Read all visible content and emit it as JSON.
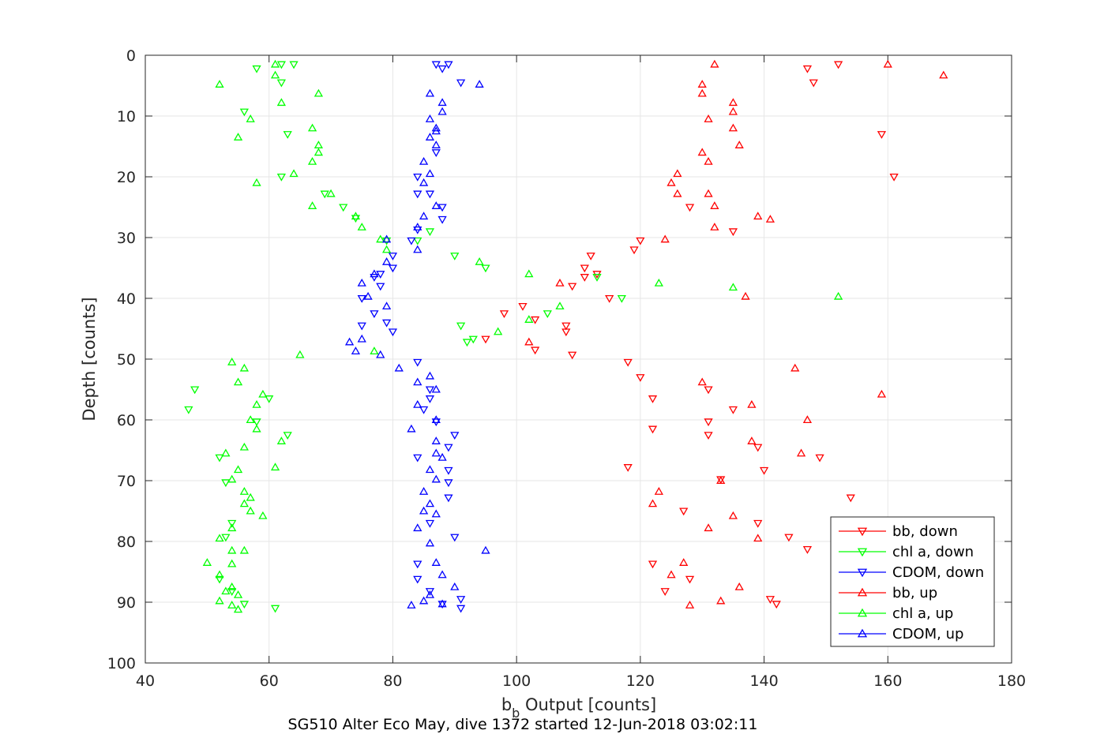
{
  "chart_data": {
    "type": "scatter",
    "title": "SG510 Alter Eco May, dive 1372 started 12-Jun-2018 03:02:11",
    "xlabel": "b",
    "xlabel_sub": "b",
    "xlabel_rest": " Output [counts]",
    "ylabel": "Depth [counts]",
    "xlim": [
      40,
      180
    ],
    "ylim": [
      0,
      100
    ],
    "y_reversed": true,
    "grid": true,
    "legend_position": "bottom-right",
    "xticks": [
      "40",
      "60",
      "80",
      "100",
      "120",
      "140",
      "160",
      "180"
    ],
    "yticks": [
      "0",
      "10",
      "20",
      "30",
      "40",
      "50",
      "60",
      "70",
      "80",
      "90",
      "100"
    ],
    "series": [
      {
        "name": "bb, down",
        "color": "#ff0000",
        "marker": "triangle-down",
        "points": [
          [
            152,
            1.5
          ],
          [
            147,
            2.2
          ],
          [
            148,
            4.5
          ],
          [
            159,
            13
          ],
          [
            161,
            20
          ],
          [
            128,
            25
          ],
          [
            135,
            29
          ],
          [
            120,
            30.5
          ],
          [
            119,
            32
          ],
          [
            112,
            33
          ],
          [
            111,
            35
          ],
          [
            113,
            36
          ],
          [
            109,
            38
          ],
          [
            111,
            36.5
          ],
          [
            115,
            40
          ],
          [
            101,
            41.3
          ],
          [
            98,
            42.5
          ],
          [
            103,
            43.5
          ],
          [
            108,
            44.5
          ],
          [
            108,
            45.5
          ],
          [
            95,
            46.7
          ],
          [
            103,
            48.5
          ],
          [
            109,
            49.3
          ],
          [
            118,
            50.5
          ],
          [
            120,
            53
          ],
          [
            131,
            55
          ],
          [
            122,
            56.5
          ],
          [
            135,
            58.3
          ],
          [
            131,
            60.3
          ],
          [
            122,
            61.5
          ],
          [
            131,
            62.5
          ],
          [
            139,
            64.5
          ],
          [
            149,
            66.2
          ],
          [
            118,
            67.8
          ],
          [
            140,
            68.3
          ],
          [
            133,
            69.8
          ],
          [
            154,
            72.8
          ],
          [
            127,
            75
          ],
          [
            139,
            77
          ],
          [
            144,
            79.3
          ],
          [
            147,
            81.3
          ],
          [
            122,
            83.7
          ],
          [
            128,
            86.2
          ],
          [
            124,
            88.2
          ],
          [
            141,
            89.5
          ],
          [
            142,
            90.3
          ]
        ]
      },
      {
        "name": "chl a, down",
        "color": "#00ff00",
        "marker": "triangle-down",
        "points": [
          [
            62,
            1.5
          ],
          [
            64,
            1.5
          ],
          [
            58,
            2.2
          ],
          [
            62,
            4.5
          ],
          [
            56,
            9.3
          ],
          [
            63,
            13
          ],
          [
            62,
            20
          ],
          [
            69,
            22.8
          ],
          [
            72,
            25
          ],
          [
            74,
            26.8
          ],
          [
            86,
            29
          ],
          [
            79,
            30.5
          ],
          [
            84,
            30.5
          ],
          [
            90,
            33
          ],
          [
            95,
            35
          ],
          [
            113,
            36.5
          ],
          [
            117,
            40
          ],
          [
            105,
            42.5
          ],
          [
            91,
            44.5
          ],
          [
            93,
            46.7
          ],
          [
            92,
            47.2
          ],
          [
            48,
            55
          ],
          [
            47,
            58.3
          ],
          [
            60,
            56.5
          ],
          [
            58,
            60.3
          ],
          [
            63,
            62.5
          ],
          [
            52,
            66.2
          ],
          [
            53,
            70.3
          ],
          [
            54,
            77
          ],
          [
            53,
            79.3
          ],
          [
            52,
            86.2
          ],
          [
            54,
            88.2
          ],
          [
            56,
            90.3
          ],
          [
            61,
            91
          ]
        ]
      },
      {
        "name": "CDOM, down",
        "color": "#0000ff",
        "marker": "triangle-down",
        "points": [
          [
            87,
            1.5
          ],
          [
            89,
            1.5
          ],
          [
            88,
            2.2
          ],
          [
            91,
            4.5
          ],
          [
            87,
            16
          ],
          [
            84,
            20
          ],
          [
            84,
            22.8
          ],
          [
            86,
            22.8
          ],
          [
            88,
            25
          ],
          [
            84,
            28.7
          ],
          [
            88,
            27
          ],
          [
            83,
            30.5
          ],
          [
            80,
            33
          ],
          [
            80,
            35
          ],
          [
            77,
            36.5
          ],
          [
            78,
            36
          ],
          [
            78,
            38
          ],
          [
            75,
            40
          ],
          [
            77,
            42.5
          ],
          [
            79,
            44
          ],
          [
            75,
            44.5
          ],
          [
            80,
            45.5
          ],
          [
            84,
            50.5
          ],
          [
            86,
            55
          ],
          [
            86,
            56.5
          ],
          [
            85,
            58.3
          ],
          [
            87,
            60.3
          ],
          [
            90,
            62.5
          ],
          [
            89,
            64.5
          ],
          [
            84,
            66.2
          ],
          [
            89,
            68.3
          ],
          [
            89,
            70.3
          ],
          [
            89,
            72.8
          ],
          [
            86,
            77
          ],
          [
            90,
            79.3
          ],
          [
            84,
            83.7
          ],
          [
            84,
            86.2
          ],
          [
            86,
            88.2
          ],
          [
            91,
            89.5
          ],
          [
            91,
            91
          ],
          [
            88,
            90.3
          ]
        ]
      },
      {
        "name": "bb, up",
        "color": "#ff0000",
        "marker": "triangle-up",
        "points": [
          [
            160,
            1.5
          ],
          [
            132,
            1.5
          ],
          [
            169,
            3.3
          ],
          [
            130,
            4.8
          ],
          [
            130,
            6.3
          ],
          [
            135,
            7.8
          ],
          [
            135,
            9.3
          ],
          [
            131,
            10.5
          ],
          [
            135,
            12
          ],
          [
            136,
            14.8
          ],
          [
            130,
            16
          ],
          [
            131,
            17.5
          ],
          [
            126,
            19.5
          ],
          [
            125,
            21
          ],
          [
            126,
            22.8
          ],
          [
            131,
            22.8
          ],
          [
            132,
            24.8
          ],
          [
            139,
            26.5
          ],
          [
            141,
            27
          ],
          [
            132,
            28.3
          ],
          [
            124,
            30.3
          ],
          [
            107,
            37.5
          ],
          [
            137,
            39.7
          ],
          [
            102,
            47.2
          ],
          [
            145,
            51.5
          ],
          [
            130,
            53.8
          ],
          [
            159,
            55.8
          ],
          [
            138,
            57.5
          ],
          [
            147,
            60
          ],
          [
            138,
            63.5
          ],
          [
            146,
            65.5
          ],
          [
            133,
            70
          ],
          [
            123,
            71.8
          ],
          [
            122,
            73.8
          ],
          [
            135,
            75.8
          ],
          [
            131,
            77.8
          ],
          [
            139,
            79.5
          ],
          [
            127,
            83.5
          ],
          [
            125,
            85.5
          ],
          [
            136,
            87.5
          ],
          [
            133,
            89.8
          ],
          [
            128,
            90.5
          ]
        ]
      },
      {
        "name": "chl a, up",
        "color": "#00ff00",
        "marker": "triangle-up",
        "points": [
          [
            61,
            1.5
          ],
          [
            52,
            4.8
          ],
          [
            61,
            3.3
          ],
          [
            68,
            6.3
          ],
          [
            62,
            7.8
          ],
          [
            57,
            10.5
          ],
          [
            67,
            12
          ],
          [
            55,
            13.5
          ],
          [
            68,
            14.8
          ],
          [
            68,
            16
          ],
          [
            67,
            17.5
          ],
          [
            64,
            19.5
          ],
          [
            58,
            21
          ],
          [
            70,
            22.8
          ],
          [
            67,
            24.8
          ],
          [
            74,
            26.5
          ],
          [
            75,
            28.3
          ],
          [
            78,
            30.3
          ],
          [
            79,
            32
          ],
          [
            94,
            34
          ],
          [
            102,
            36
          ],
          [
            123,
            37.5
          ],
          [
            135,
            38.2
          ],
          [
            152,
            39.7
          ],
          [
            107,
            41.3
          ],
          [
            102,
            43.5
          ],
          [
            97,
            45.5
          ],
          [
            77,
            48.7
          ],
          [
            65,
            49.3
          ],
          [
            54,
            50.5
          ],
          [
            56,
            51.5
          ],
          [
            55,
            53.8
          ],
          [
            59,
            55.8
          ],
          [
            58,
            57.5
          ],
          [
            57,
            60
          ],
          [
            58,
            61.5
          ],
          [
            62,
            63.5
          ],
          [
            56,
            64.5
          ],
          [
            53,
            65.5
          ],
          [
            55,
            68.2
          ],
          [
            61,
            67.8
          ],
          [
            54,
            69.8
          ],
          [
            56,
            71.8
          ],
          [
            57,
            72.8
          ],
          [
            56,
            73.8
          ],
          [
            57,
            75
          ],
          [
            59,
            75.8
          ],
          [
            54,
            77.8
          ],
          [
            52,
            79.5
          ],
          [
            54,
            81.5
          ],
          [
            56,
            81.5
          ],
          [
            54,
            83.7
          ],
          [
            50,
            83.5
          ],
          [
            52,
            85.5
          ],
          [
            54,
            87.5
          ],
          [
            53,
            88.2
          ],
          [
            55,
            88.8
          ],
          [
            52,
            89.8
          ],
          [
            54,
            90.5
          ],
          [
            55,
            91.2
          ]
        ]
      },
      {
        "name": "CDOM, up",
        "color": "#0000ff",
        "marker": "triangle-up",
        "points": [
          [
            94,
            4.8
          ],
          [
            86,
            6.3
          ],
          [
            88,
            7.8
          ],
          [
            88,
            9.3
          ],
          [
            86,
            10.5
          ],
          [
            87,
            12
          ],
          [
            87,
            12.5
          ],
          [
            86,
            13.5
          ],
          [
            87,
            14.8
          ],
          [
            85,
            17.5
          ],
          [
            86,
            19.5
          ],
          [
            85,
            21
          ],
          [
            87,
            24.8
          ],
          [
            85,
            26.5
          ],
          [
            84,
            28.3
          ],
          [
            79,
            30.3
          ],
          [
            84,
            32
          ],
          [
            79,
            34
          ],
          [
            77,
            36
          ],
          [
            75,
            37.5
          ],
          [
            76,
            39.7
          ],
          [
            79,
            41.3
          ],
          [
            75,
            46.7
          ],
          [
            73,
            47.2
          ],
          [
            74,
            48.7
          ],
          [
            78,
            49.3
          ],
          [
            81,
            51.5
          ],
          [
            86,
            52.8
          ],
          [
            84,
            53.8
          ],
          [
            87,
            55
          ],
          [
            84,
            57.5
          ],
          [
            87,
            60
          ],
          [
            83,
            61.5
          ],
          [
            87,
            63.5
          ],
          [
            87,
            65.5
          ],
          [
            88,
            66.2
          ],
          [
            86,
            68.2
          ],
          [
            87,
            69.8
          ],
          [
            85,
            71.8
          ],
          [
            86,
            73.8
          ],
          [
            85,
            75
          ],
          [
            87,
            75.5
          ],
          [
            84,
            77.8
          ],
          [
            86,
            80.3
          ],
          [
            95,
            81.5
          ],
          [
            87,
            83.5
          ],
          [
            88,
            85.5
          ],
          [
            90,
            87.5
          ],
          [
            86,
            88.8
          ],
          [
            85,
            89.8
          ],
          [
            83,
            90.5
          ],
          [
            88,
            90.3
          ]
        ]
      }
    ]
  }
}
